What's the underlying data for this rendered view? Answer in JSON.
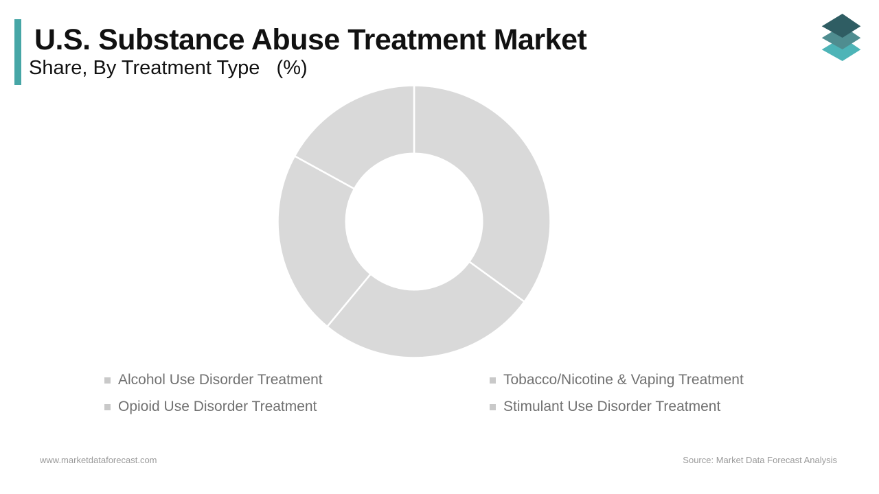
{
  "colors": {
    "page_bg": "#ffffff",
    "accent": "#46a6a6",
    "text": "#111111",
    "muted": "#717171",
    "faint": "#9a9a9a",
    "marker": "#c9c9c9"
  },
  "header": {
    "title": "U.S. Substance Abuse Treatment Market",
    "subtitle": "Share, By Treatment Type   (%)"
  },
  "logo": {
    "name": "market-data-forecast-layered-diamonds-logo",
    "layer_colors": [
      "#4db4b7",
      "#4f8d90",
      "#2f5d63"
    ]
  },
  "chart_data": {
    "type": "pie",
    "donut": true,
    "title": "U.S. Substance Abuse Treatment Market Share, By Treatment Type (%)",
    "labels": [
      "Alcohol Use Disorder Treatment",
      "Tobacco/Nicotine & Vaping Treatment",
      "Opioid Use Disorder Treatment",
      "Stimulant Use Disorder Treatment"
    ],
    "values": [
      35,
      26,
      22,
      17
    ],
    "unit": "%",
    "start_angle_deg": 0,
    "direction": "clockwise",
    "inner_radius_ratio": 0.5,
    "segment_color": "#d9d9d9",
    "divider_color": "#ffffff",
    "legend_position": "bottom",
    "data_labels_shown": false
  },
  "footer": {
    "website": "www.marketdataforecast.com",
    "source": "Source: Market Data Forecast Analysis"
  }
}
